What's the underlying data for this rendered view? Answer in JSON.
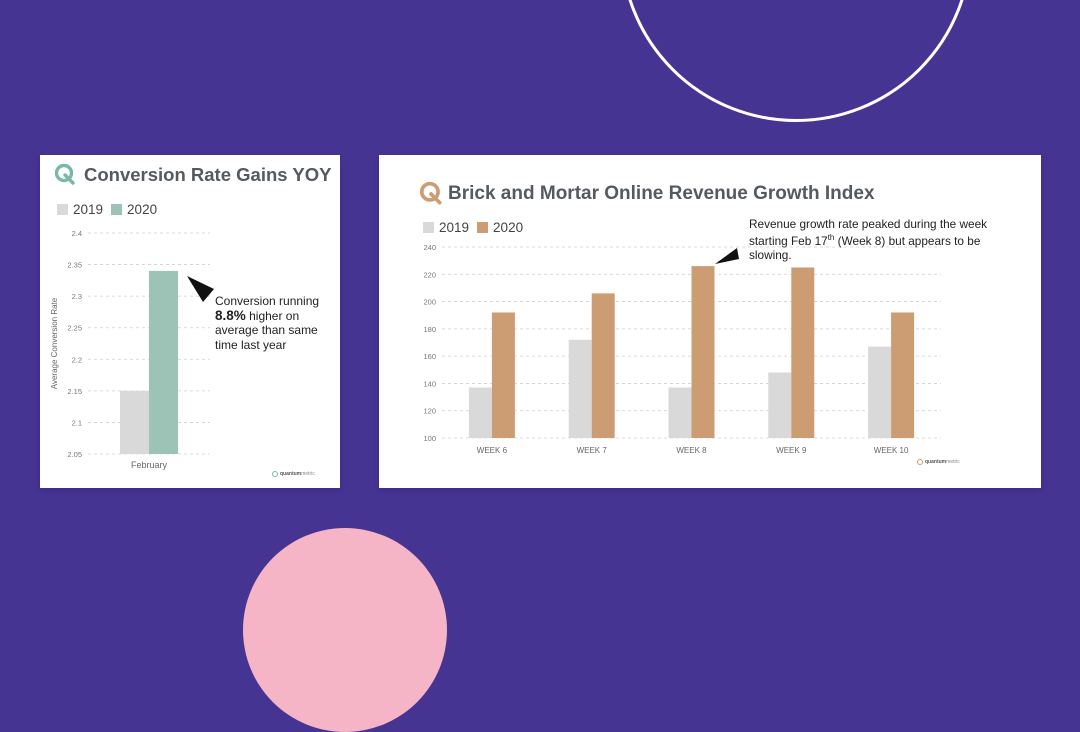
{
  "colors": {
    "background": "#463493",
    "ring": "#ffffff",
    "blob": "#f6b5c6",
    "series2019": "#d9d9d9",
    "left2020": "#9dc2b6",
    "right2020": "#cc9d72",
    "grid": "#cfcfcf",
    "logoLeft": "#7bb7a6",
    "logoRight": "#cc9d72"
  },
  "left_card": {
    "title": "Conversion Rate Gains YOY",
    "legend": [
      "2019",
      "2020"
    ],
    "annotation": {
      "highlight": "8.8%",
      "line1": "Conversion running",
      "line2": " higher on average than same time last year"
    },
    "brand": {
      "name": "quantum",
      "sub": "metric"
    }
  },
  "right_card": {
    "title": "Brick and Mortar Online Revenue Growth Index",
    "legend": [
      "2019",
      "2020"
    ],
    "annotation": {
      "part1": "Revenue growth rate peaked during the week starting Feb 17",
      "sup": "th",
      "part2": " (Week 8) but appears to be slowing."
    },
    "brand": {
      "name": "quantum",
      "sub": "metric"
    }
  },
  "chart_data": [
    {
      "type": "bar",
      "title": "Conversion Rate Gains YOY",
      "categories": [
        "February"
      ],
      "series": [
        {
          "name": "2019",
          "values": [
            2.15
          ]
        },
        {
          "name": "2020",
          "values": [
            2.34
          ]
        }
      ],
      "ylabel": "Average Conversion Rate",
      "xlabel": "",
      "ylim": [
        2.05,
        2.4
      ],
      "yticks": [
        "2.05",
        "2.1",
        "2.15",
        "2.2",
        "2.25",
        "2.3",
        "2.35",
        "2.4"
      ],
      "grid": true,
      "legend": "top-left"
    },
    {
      "type": "bar",
      "title": "Brick and Mortar Online Revenue Growth Index",
      "categories": [
        "WEEK 6",
        "WEEK 7",
        "WEEK 8",
        "WEEK 9",
        "WEEK 10"
      ],
      "series": [
        {
          "name": "2019",
          "values": [
            137,
            172,
            137,
            148,
            167
          ]
        },
        {
          "name": "2020",
          "values": [
            192,
            206,
            226,
            225,
            192
          ]
        }
      ],
      "xlabel": "",
      "ylabel": "",
      "ylim": [
        100,
        240
      ],
      "yticks": [
        "100",
        "120",
        "140",
        "160",
        "180",
        "200",
        "220",
        "240"
      ],
      "grid": true,
      "legend": "top-left"
    }
  ]
}
